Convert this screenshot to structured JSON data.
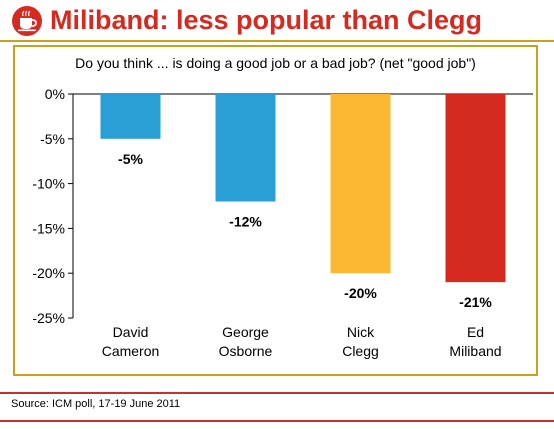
{
  "header": {
    "title": "Miliband: less popular than Clegg",
    "logo_icon": "coffee-cup-icon"
  },
  "footer": {
    "source": "Source: ICM poll, 17-19 June 2011"
  },
  "chart_data": {
    "type": "bar",
    "title": "Do you think ... is doing a good job or a bad job? (net \"good job\")",
    "xlabel": "",
    "ylabel": "",
    "categories": [
      [
        "David",
        "Cameron"
      ],
      [
        "George",
        "Osborne"
      ],
      [
        "Nick",
        "Clegg"
      ],
      [
        "Ed",
        "Miliband"
      ]
    ],
    "values": [
      -5,
      -12,
      -20,
      -21
    ],
    "data_labels": [
      "-5%",
      "-12%",
      "-20%",
      "-21%"
    ],
    "colors": [
      "#2a9fd6",
      "#2a9fd6",
      "#fbb830",
      "#d42a1f"
    ],
    "ylim": [
      -25,
      0
    ],
    "yticks": [
      0,
      -5,
      -10,
      -15,
      -20,
      -25
    ],
    "ytick_labels": [
      "0%",
      "-5%",
      "-10%",
      "-15%",
      "-20%",
      "-25%"
    ],
    "grid": false,
    "legend": "none"
  }
}
